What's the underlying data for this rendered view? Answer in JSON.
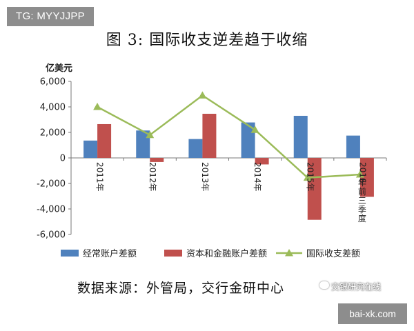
{
  "tag_label": "TG: MYYJJPP",
  "site_label": "bai-xk.com",
  "source_note": "数据来源：外管局，交行金研中心",
  "watermark": "交银研究在线",
  "chart_data": {
    "type": "bar",
    "title": "图 3:  国际收支逆差趋于收缩",
    "ylabel": "亿美元",
    "xlabel": "",
    "ylim": [
      -6000,
      6000
    ],
    "yticks": [
      6000,
      4000,
      2000,
      0,
      -2000,
      -4000,
      -6000
    ],
    "ytick_labels": [
      "6,000",
      "4,000",
      "2,000",
      "0",
      "-2,000",
      "-4,000",
      "-6,000"
    ],
    "categories": [
      "2011年",
      "2012年",
      "2013年",
      "2014年",
      "2015年",
      "2016年前三季度"
    ],
    "grid": false,
    "legend_position": "bottom",
    "series": [
      {
        "name": "经常账户差额",
        "type": "bar",
        "color": "#4f81bd",
        "values": [
          1360,
          2150,
          1480,
          2780,
          3300,
          1750
        ]
      },
      {
        "name": "资本和金融账户差额",
        "type": "bar",
        "color": "#c0504d",
        "values": [
          2650,
          -320,
          3460,
          -510,
          -4850,
          -3050
        ]
      },
      {
        "name": "国际收支差额",
        "type": "line",
        "color": "#9bbb59",
        "values": [
          4000,
          1800,
          4900,
          2200,
          -1550,
          -1300
        ]
      }
    ]
  }
}
